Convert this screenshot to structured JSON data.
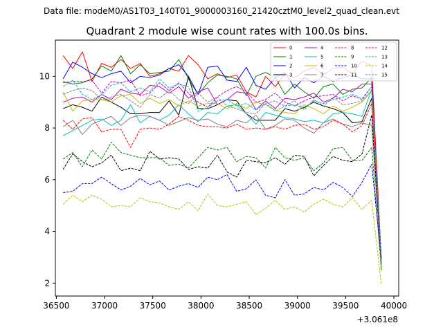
{
  "figure": {
    "suptitle": "Data file: modeM0/AS1T03_140T01_9000003160_21420cztM0_level2_quad_clean.evt"
  },
  "chart_data": {
    "type": "line",
    "title": "Quadrant 2 module wise count rates with 100.0s bins.",
    "xlabel": "",
    "ylabel": "",
    "x_offset_label": "+3.061e8",
    "xlim": [
      36490,
      40050
    ],
    "ylim": [
      1.5,
      11.4
    ],
    "xticks": [
      36500,
      37000,
      37500,
      38000,
      38500,
      39000,
      39500,
      40000
    ],
    "xtick_labels": [
      "36500",
      "37000",
      "37500",
      "38000",
      "38500",
      "39000",
      "39500",
      "40000"
    ],
    "yticks": [
      2,
      4,
      6,
      8,
      10
    ],
    "ytick_labels": [
      "2",
      "4",
      "6",
      "8",
      "10"
    ],
    "grid": false,
    "legend_placement": "top-right",
    "legend_columns": 4,
    "x": [
      36570,
      36670,
      36770,
      36870,
      36970,
      37070,
      37170,
      37270,
      37370,
      37470,
      37570,
      37670,
      37770,
      37870,
      37970,
      38070,
      38170,
      38270,
      38370,
      38470,
      38570,
      38670,
      38770,
      38870,
      38970,
      39070,
      39170,
      39270,
      39370,
      39470,
      39570,
      39670,
      39770,
      39870
    ],
    "series": [
      {
        "name": "0",
        "color": "#ff0000",
        "dash": "solid",
        "values": [
          10.8,
          10.3,
          10.95,
          9.8,
          10.5,
          10.35,
          10.65,
          10.3,
          10.5,
          10.0,
          10.1,
          10.3,
          10.2,
          10.8,
          10.45,
          9.9,
          10.1,
          9.95,
          10.05,
          9.4,
          9.2,
          10.0,
          9.6,
          10.1,
          9.95,
          10.2,
          10.35,
          10.05,
          10.3,
          10.35,
          10.1,
          10.6,
          10.4,
          2.9
        ]
      },
      {
        "name": "1",
        "color": "#008000",
        "dash": "solid",
        "values": [
          9.8,
          9.7,
          9.75,
          9.9,
          10.4,
          10.2,
          10.8,
          10.1,
          10.45,
          10.1,
          10.15,
          10.2,
          10.65,
          9.9,
          9.3,
          9.75,
          10.05,
          10.0,
          9.9,
          9.25,
          10.0,
          10.15,
          9.95,
          9.3,
          9.7,
          9.4,
          9.15,
          9.6,
          9.7,
          9.3,
          9.5,
          9.55,
          9.95,
          2.5
        ]
      },
      {
        "name": "2",
        "color": "#0000ff",
        "dash": "solid",
        "values": [
          9.9,
          10.55,
          10.35,
          10.1,
          9.95,
          10.1,
          10.2,
          9.75,
          10.0,
          9.95,
          10.05,
          10.3,
          10.45,
          10.0,
          9.3,
          10.35,
          10.4,
          9.85,
          9.8,
          10.35,
          9.65,
          9.5,
          9.95,
          10.15,
          9.55,
          9.95,
          9.75,
          10.0,
          9.8,
          9.95,
          10.05,
          9.9,
          9.9,
          2.7
        ]
      },
      {
        "name": "3",
        "color": "#000000",
        "dash": "solid",
        "values": [
          8.75,
          8.9,
          8.8,
          8.65,
          9.2,
          9.0,
          8.8,
          8.55,
          8.55,
          8.6,
          8.6,
          9.05,
          8.5,
          10.0,
          8.75,
          8.75,
          8.9,
          9.1,
          9.05,
          8.55,
          8.3,
          8.3,
          8.3,
          8.75,
          8.65,
          8.8,
          9.0,
          8.85,
          8.75,
          8.6,
          8.2,
          8.25,
          9.15,
          2.95
        ]
      },
      {
        "name": "4",
        "color": "#bf00bf",
        "dash": "solid",
        "values": [
          9.0,
          9.15,
          9.2,
          9.0,
          9.3,
          9.1,
          9.5,
          9.35,
          9.3,
          9.65,
          9.6,
          9.35,
          9.6,
          9.15,
          9.4,
          9.55,
          8.9,
          9.1,
          9.4,
          9.35,
          8.7,
          9.05,
          8.75,
          9.15,
          9.1,
          9.2,
          9.35,
          9.0,
          9.15,
          9.5,
          9.4,
          9.7,
          9.7,
          2.95
        ]
      },
      {
        "name": "5",
        "color": "#00bfbf",
        "dash": "solid",
        "values": [
          7.7,
          7.9,
          8.1,
          8.3,
          8.35,
          8.1,
          8.3,
          8.9,
          8.2,
          8.45,
          8.3,
          8.5,
          8.9,
          8.55,
          8.25,
          8.6,
          8.55,
          8.85,
          8.9,
          8.55,
          8.15,
          8.6,
          8.5,
          8.4,
          8.35,
          8.25,
          8.3,
          8.2,
          8.55,
          8.6,
          8.55,
          8.45,
          9.5,
          2.9
        ]
      },
      {
        "name": "6",
        "color": "#bfbf00",
        "dash": "solid",
        "values": [
          9.4,
          8.65,
          9.05,
          9.1,
          9.1,
          9.0,
          9.25,
          9.3,
          8.95,
          9.15,
          8.95,
          9.1,
          8.85,
          9.05,
          8.85,
          8.95,
          8.95,
          8.75,
          8.95,
          8.75,
          9.0,
          8.9,
          8.7,
          8.6,
          8.55,
          8.9,
          8.75,
          8.55,
          8.85,
          8.65,
          8.8,
          9.0,
          9.45,
          2.5
        ]
      },
      {
        "name": "7",
        "color": "#808080",
        "dash": "solid",
        "values": [
          8.05,
          8.3,
          7.75,
          8.15,
          8.3,
          8.45,
          8.1,
          8.4,
          8.5,
          8.45,
          8.3,
          8.1,
          8.25,
          8.4,
          8.3,
          8.35,
          8.15,
          8.05,
          8.3,
          8.2,
          8.5,
          7.95,
          8.1,
          8.35,
          8.3,
          8.0,
          7.8,
          8.2,
          8.35,
          8.15,
          8.05,
          8.2,
          8.1,
          2.7
        ]
      },
      {
        "name": "8",
        "color": "#ff0000",
        "dash": "dashed",
        "values": [
          8.3,
          7.95,
          8.35,
          8.4,
          7.85,
          7.95,
          7.95,
          7.25,
          7.95,
          8.0,
          7.95,
          8.15,
          8.45,
          8.3,
          8.1,
          8.05,
          8.05,
          8.0,
          8.15,
          7.95,
          8.0,
          7.95,
          8.05,
          7.95,
          8.1,
          8.15,
          7.95,
          8.05,
          8.3,
          8.15,
          7.85,
          8.1,
          8.95,
          2.9
        ]
      },
      {
        "name": "9",
        "color": "#008000",
        "dash": "dashed",
        "values": [
          6.8,
          7.05,
          6.5,
          7.15,
          6.8,
          7.45,
          7.05,
          6.95,
          6.85,
          6.85,
          6.85,
          6.55,
          6.6,
          6.45,
          6.85,
          7.25,
          7.15,
          7.25,
          6.7,
          6.9,
          6.85,
          6.45,
          7.25,
          6.85,
          6.75,
          6.85,
          6.35,
          6.65,
          7.2,
          7.25,
          6.75,
          6.75,
          7.25,
          2.5
        ]
      },
      {
        "name": "10",
        "color": "#0000ff",
        "dash": "dashed",
        "values": [
          5.5,
          5.55,
          5.85,
          5.85,
          6.1,
          5.85,
          5.6,
          5.75,
          6.05,
          5.8,
          5.95,
          5.6,
          5.75,
          5.85,
          5.7,
          6.1,
          6.0,
          6.2,
          5.55,
          5.65,
          6.0,
          5.4,
          5.3,
          6.0,
          5.4,
          5.45,
          5.7,
          5.6,
          5.9,
          5.7,
          5.35,
          5.9,
          6.6,
          2.9
        ]
      },
      {
        "name": "11",
        "color": "#000000",
        "dash": "dashed",
        "values": [
          6.4,
          7.0,
          6.7,
          6.5,
          6.65,
          6.95,
          6.35,
          6.45,
          6.35,
          7.1,
          6.8,
          6.85,
          6.8,
          6.4,
          6.5,
          6.45,
          6.95,
          6.3,
          6.1,
          6.75,
          6.7,
          6.65,
          6.85,
          6.6,
          6.95,
          6.9,
          6.15,
          6.55,
          6.9,
          6.75,
          6.7,
          7.0,
          8.5,
          2.85
        ]
      },
      {
        "name": "12",
        "color": "#bf00bf",
        "dash": "dashed",
        "values": [
          9.75,
          9.8,
          9.8,
          9.85,
          9.35,
          9.8,
          9.75,
          9.85,
          9.25,
          9.35,
          9.75,
          9.45,
          9.75,
          9.35,
          9.0,
          8.8,
          9.2,
          9.45,
          9.6,
          9.4,
          9.0,
          9.1,
          9.35,
          9.0,
          8.85,
          9.05,
          9.2,
          9.25,
          9.3,
          9.05,
          9.25,
          9.1,
          9.6,
          2.9
        ]
      },
      {
        "name": "13",
        "color": "#00bfbf",
        "dash": "dashed",
        "values": [
          9.6,
          9.85,
          9.3,
          9.1,
          9.3,
          9.65,
          9.75,
          9.4,
          9.55,
          9.4,
          9.9,
          9.55,
          9.7,
          9.6,
          8.65,
          8.8,
          9.05,
          9.1,
          8.85,
          8.95,
          8.7,
          8.95,
          8.65,
          8.85,
          8.9,
          8.75,
          9.05,
          8.95,
          9.1,
          9.2,
          9.3,
          9.15,
          9.6,
          2.9
        ]
      },
      {
        "name": "14",
        "color": "#bfbf00",
        "dash": "dashed",
        "values": [
          5.05,
          5.4,
          5.15,
          5.4,
          5.25,
          4.95,
          5.0,
          4.95,
          5.3,
          5.15,
          5.1,
          4.95,
          4.85,
          5.15,
          4.8,
          5.45,
          5.0,
          4.95,
          5.05,
          5.15,
          4.65,
          4.9,
          5.2,
          4.85,
          4.95,
          4.75,
          5.05,
          5.25,
          5.05,
          4.95,
          5.3,
          4.85,
          5.2,
          1.95
        ]
      },
      {
        "name": "15",
        "color": "#808080",
        "dash": "dashed",
        "values": [
          9.3,
          9.45,
          9.55,
          9.45,
          9.1,
          9.2,
          9.3,
          9.05,
          8.8,
          9.3,
          9.15,
          9.45,
          9.1,
          8.95,
          9.35,
          9.0,
          9.2,
          8.85,
          8.75,
          8.6,
          8.55,
          8.95,
          9.05,
          8.85,
          9.05,
          8.7,
          9.1,
          8.85,
          9.2,
          8.9,
          8.95,
          9.05,
          9.45,
          2.75
        ]
      }
    ]
  }
}
